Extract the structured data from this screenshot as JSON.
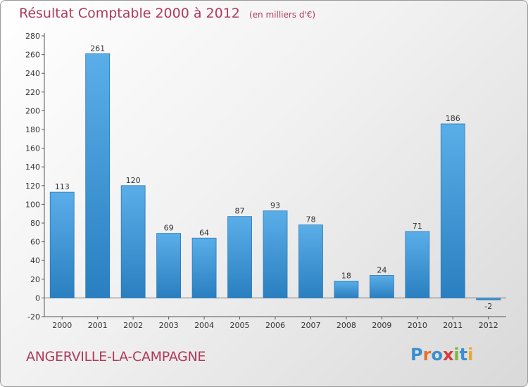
{
  "header": {
    "title": "Résultat Comptable 2000 à 2012",
    "unit_note": "(en milliers d'€)"
  },
  "footer": {
    "place_name": "ANGERVILLE-LA-CAMPAGNE",
    "logo_text": "Proxiti"
  },
  "colors": {
    "title": "#b03a5b",
    "bar_top": "#5aaee8",
    "bar_bottom": "#2a7fc0",
    "logo_letters": [
      "#3a8fd0",
      "#e8702a",
      "#3a8fd0",
      "#d63a3a",
      "#7ab83a",
      "#3a8fd0",
      "#e8a82a"
    ]
  },
  "chart_data": {
    "type": "bar",
    "title": "Résultat Comptable 2000 à 2012",
    "subtitle": "(en milliers d'€)",
    "xlabel": "",
    "ylabel": "",
    "categories": [
      "2000",
      "2001",
      "2002",
      "2003",
      "2004",
      "2005",
      "2006",
      "2007",
      "2008",
      "2009",
      "2010",
      "2011",
      "2012"
    ],
    "values": [
      113,
      261,
      120,
      69,
      64,
      87,
      93,
      78,
      18,
      24,
      71,
      186,
      -2
    ],
    "ylim": [
      -20,
      280
    ],
    "yticks": [
      -20,
      0,
      20,
      40,
      60,
      80,
      100,
      120,
      140,
      160,
      180,
      200,
      220,
      240,
      260,
      280
    ],
    "grid": false,
    "legend": "none"
  }
}
